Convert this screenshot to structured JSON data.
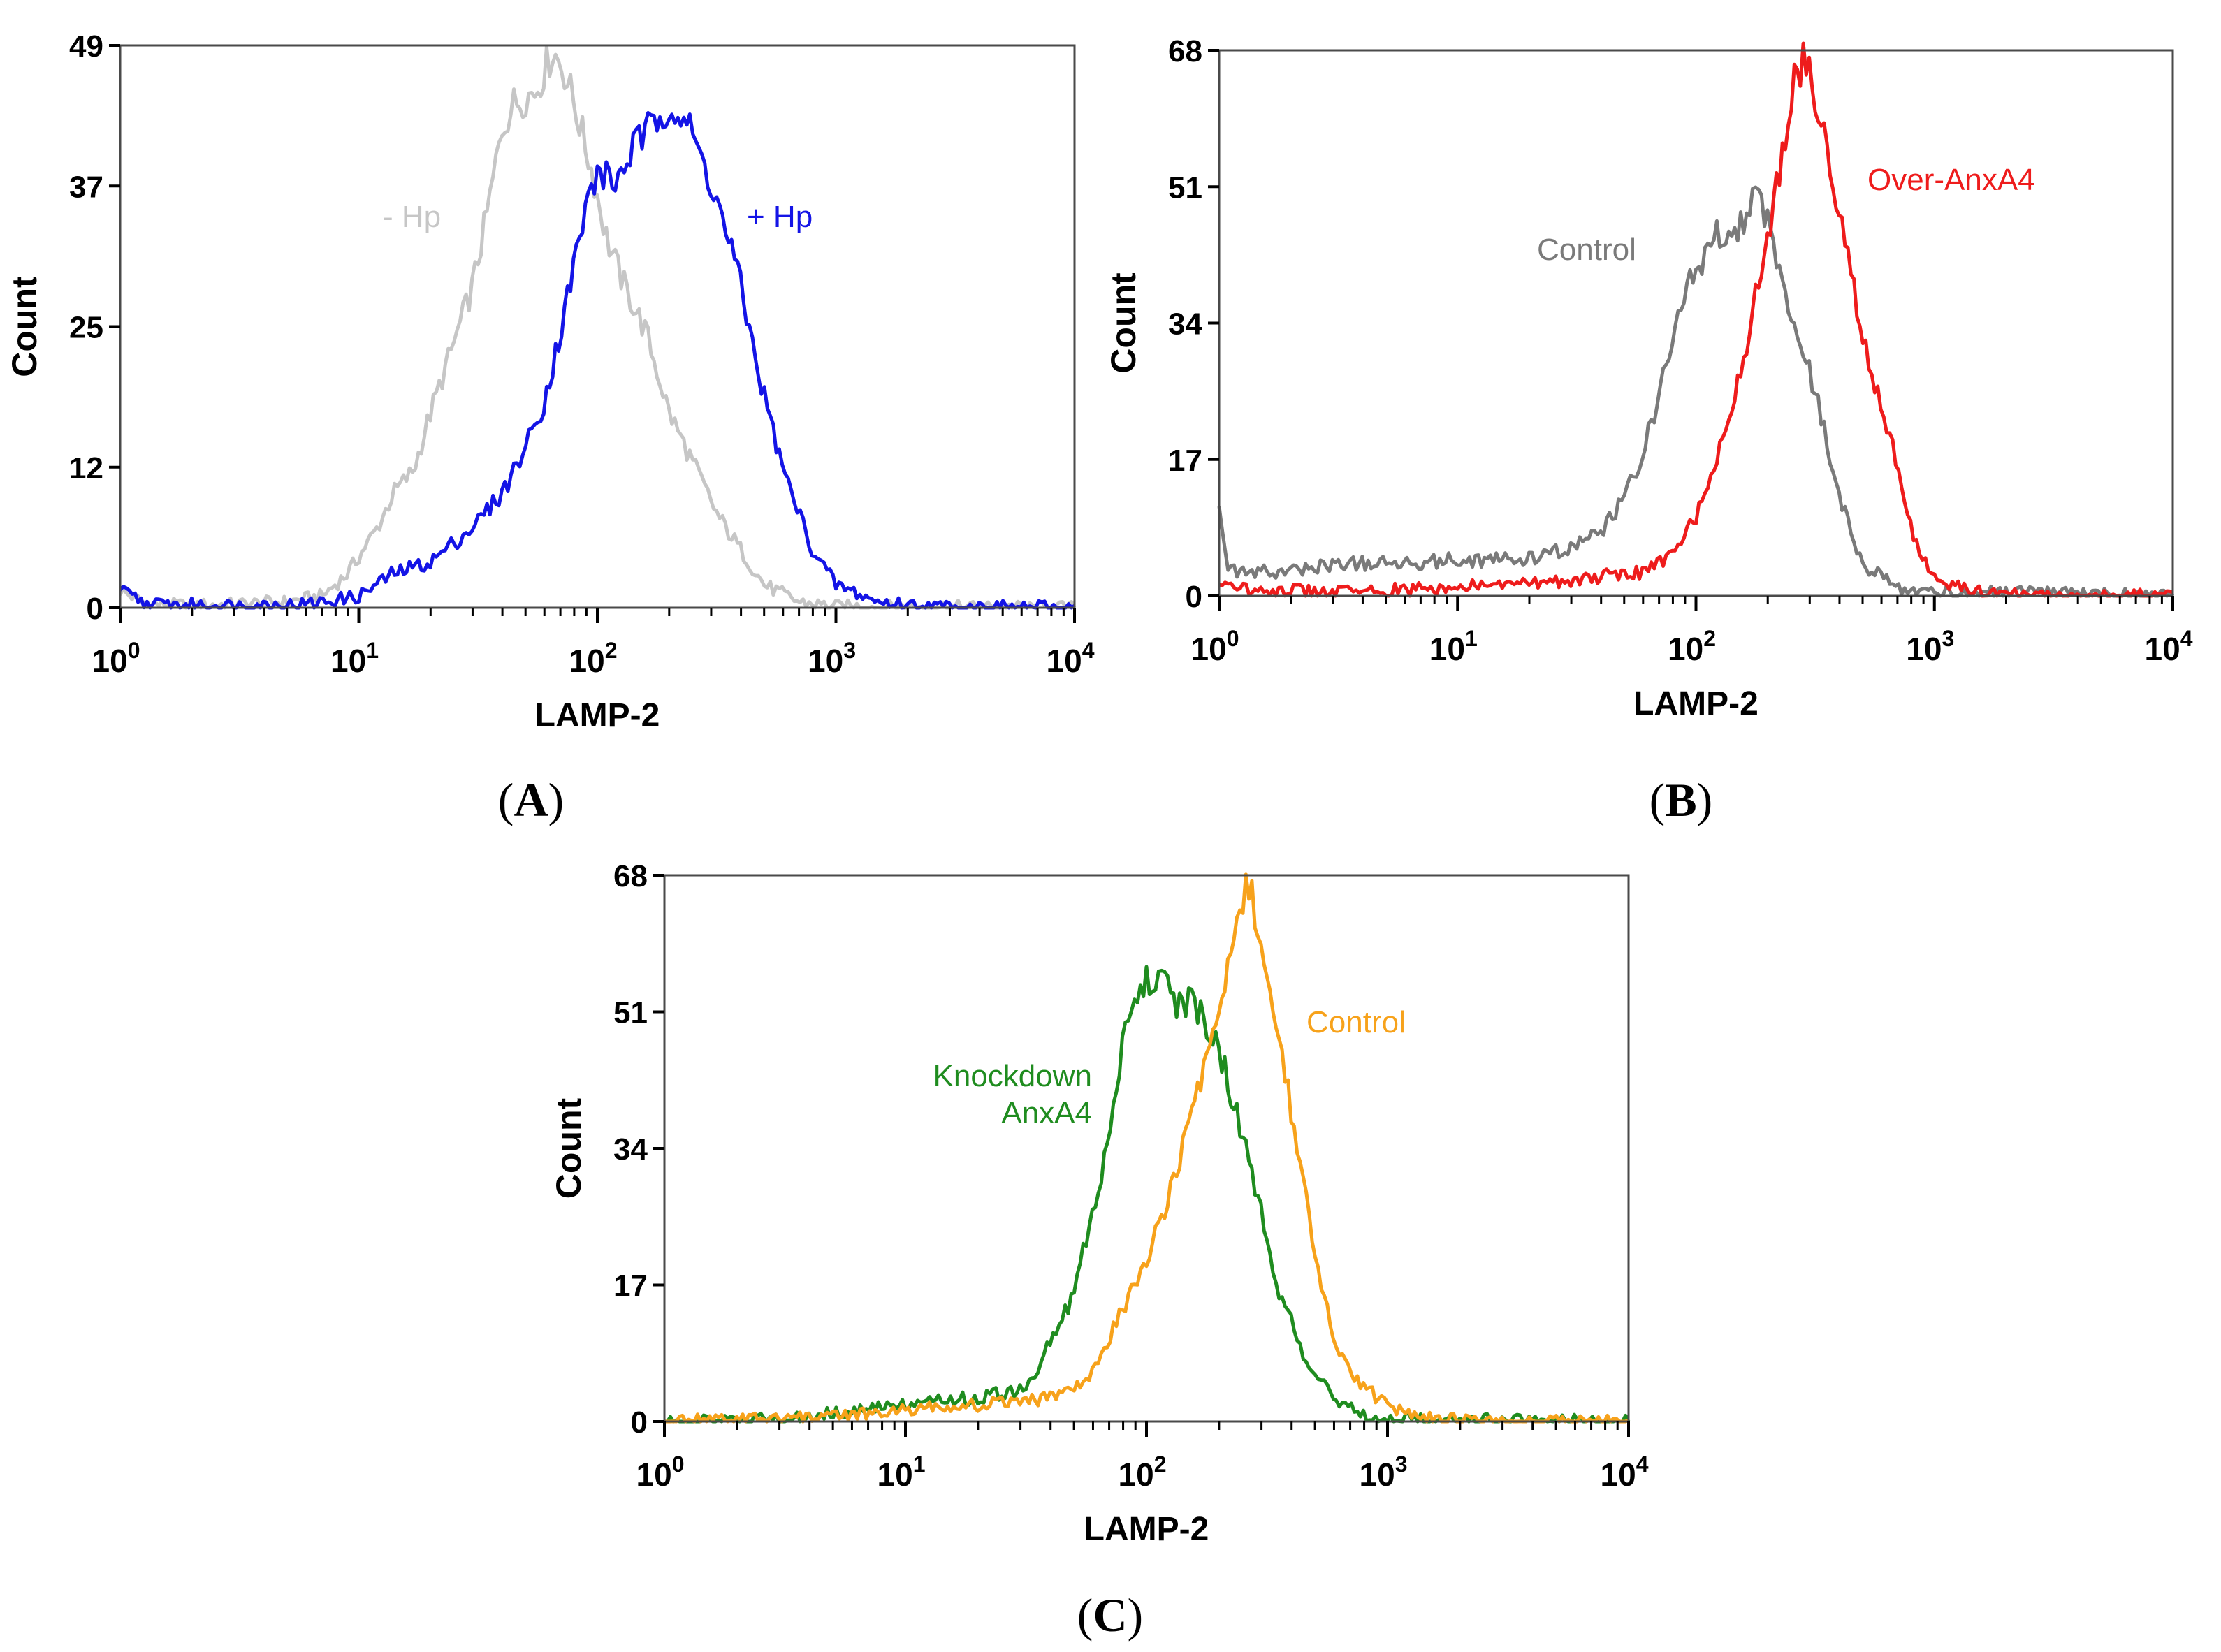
{
  "chart_data": [
    {
      "panel": "(A)",
      "panel_letter": "A",
      "type": "line",
      "title": "",
      "xlabel": "LAMP-2",
      "ylabel": "Count",
      "x_scale": "log",
      "xlim": [
        1,
        10000
      ],
      "ylim": [
        0,
        49
      ],
      "yticks": [
        "0",
        "12",
        "25",
        "37",
        "49"
      ],
      "xticks": [
        {
          "base": "10",
          "exp": "0"
        },
        {
          "base": "10",
          "exp": "1"
        },
        {
          "base": "10",
          "exp": "2"
        },
        {
          "base": "10",
          "exp": "3"
        },
        {
          "base": "10",
          "exp": "4"
        }
      ],
      "series": [
        {
          "name": "- Hp",
          "color": "#c6c6c6",
          "points": [
            [
              1,
              1.5
            ],
            [
              1.3,
              0.3
            ],
            [
              2,
              0.2
            ],
            [
              3,
              0.3
            ],
            [
              5,
              0.5
            ],
            [
              7,
              1
            ],
            [
              9,
              3
            ],
            [
              12,
              7
            ],
            [
              14,
              10
            ],
            [
              17,
              12
            ],
            [
              20,
              17
            ],
            [
              25,
              23
            ],
            [
              30,
              28
            ],
            [
              35,
              35
            ],
            [
              40,
              42
            ],
            [
              45,
              44
            ],
            [
              55,
              45
            ],
            [
              65,
              48.5
            ],
            [
              72,
              47
            ],
            [
              80,
              44
            ],
            [
              95,
              38
            ],
            [
              110,
              32
            ],
            [
              130,
              28
            ],
            [
              160,
              24
            ],
            [
              200,
              17
            ],
            [
              260,
              12
            ],
            [
              320,
              8
            ],
            [
              400,
              5
            ],
            [
              500,
              2
            ],
            [
              700,
              0.5
            ],
            [
              1000,
              0.1
            ],
            [
              10000,
              0
            ]
          ]
        },
        {
          "name": "+ Hp",
          "color": "#1414e6",
          "points": [
            [
              1,
              1.5
            ],
            [
              1.3,
              0.3
            ],
            [
              3,
              0.2
            ],
            [
              6,
              0.3
            ],
            [
              10,
              1
            ],
            [
              14,
              3
            ],
            [
              20,
              4
            ],
            [
              30,
              7
            ],
            [
              40,
              10
            ],
            [
              50,
              14
            ],
            [
              60,
              18
            ],
            [
              70,
              24
            ],
            [
              80,
              30
            ],
            [
              90,
              35
            ],
            [
              100,
              38
            ],
            [
              120,
              37
            ],
            [
              140,
              40
            ],
            [
              170,
              42
            ],
            [
              200,
              44
            ],
            [
              240,
              42
            ],
            [
              300,
              37
            ],
            [
              380,
              30
            ],
            [
              480,
              20
            ],
            [
              600,
              12
            ],
            [
              800,
              5
            ],
            [
              1000,
              2
            ],
            [
              1500,
              0.5
            ],
            [
              2500,
              0.1
            ],
            [
              10000,
              0
            ]
          ]
        }
      ]
    },
    {
      "panel": "(B)",
      "panel_letter": "B",
      "type": "line",
      "title": "",
      "xlabel": "LAMP-2",
      "ylabel": "Count",
      "x_scale": "log",
      "xlim": [
        1,
        10000
      ],
      "ylim": [
        0,
        68
      ],
      "yticks": [
        "0",
        "17",
        "34",
        "51",
        "68"
      ],
      "xticks": [
        {
          "base": "10",
          "exp": "0"
        },
        {
          "base": "10",
          "exp": "1"
        },
        {
          "base": "10",
          "exp": "2"
        },
        {
          "base": "10",
          "exp": "3"
        },
        {
          "base": "10",
          "exp": "4"
        }
      ],
      "series": [
        {
          "name": "Control",
          "color": "#7a7a7a",
          "points": [
            [
              1,
              12
            ],
            [
              1.1,
              3
            ],
            [
              2,
              3
            ],
            [
              3,
              4
            ],
            [
              5,
              4
            ],
            [
              10,
              4.5
            ],
            [
              20,
              4.5
            ],
            [
              30,
              6
            ],
            [
              40,
              8
            ],
            [
              50,
              12
            ],
            [
              60,
              18
            ],
            [
              70,
              25
            ],
            [
              80,
              32
            ],
            [
              90,
              38
            ],
            [
              100,
              40
            ],
            [
              120,
              45
            ],
            [
              150,
              46
            ],
            [
              180,
              50
            ],
            [
              200,
              47
            ],
            [
              250,
              35
            ],
            [
              300,
              28
            ],
            [
              350,
              20
            ],
            [
              400,
              12
            ],
            [
              500,
              4
            ],
            [
              700,
              1
            ],
            [
              1000,
              0.5
            ],
            [
              10000,
              0
            ]
          ]
        },
        {
          "name": "Over-AnxA4",
          "color": "#ee1c1c",
          "points": [
            [
              1,
              1
            ],
            [
              3,
              0.5
            ],
            [
              10,
              1
            ],
            [
              30,
              2
            ],
            [
              60,
              3
            ],
            [
              80,
              5
            ],
            [
              100,
              10
            ],
            [
              130,
              20
            ],
            [
              160,
              30
            ],
            [
              200,
              45
            ],
            [
              230,
              55
            ],
            [
              260,
              65
            ],
            [
              290,
              67
            ],
            [
              330,
              60
            ],
            [
              400,
              48
            ],
            [
              500,
              32
            ],
            [
              650,
              20
            ],
            [
              800,
              8
            ],
            [
              1000,
              2
            ],
            [
              1500,
              0.5
            ],
            [
              2500,
              0
            ],
            [
              10000,
              0
            ]
          ]
        }
      ]
    },
    {
      "panel": "(C)",
      "panel_letter": "C",
      "type": "line",
      "title": "",
      "xlabel": "LAMP-2",
      "ylabel": "Count",
      "x_scale": "log",
      "xlim": [
        1,
        10000
      ],
      "ylim": [
        0,
        68
      ],
      "yticks": [
        "0",
        "17",
        "34",
        "51",
        "68"
      ],
      "xticks": [
        {
          "base": "10",
          "exp": "0"
        },
        {
          "base": "10",
          "exp": "1"
        },
        {
          "base": "10",
          "exp": "2"
        },
        {
          "base": "10",
          "exp": "3"
        },
        {
          "base": "10",
          "exp": "4"
        }
      ],
      "series": [
        {
          "name": "Knockdown AnxA4",
          "label_lines": [
            "Knockdown",
            "AnxA4"
          ],
          "color": "#1f8c1f",
          "points": [
            [
              1,
              0
            ],
            [
              3,
              0.3
            ],
            [
              5,
              1
            ],
            [
              10,
              2
            ],
            [
              20,
              3
            ],
            [
              30,
              4
            ],
            [
              35,
              6
            ],
            [
              40,
              10
            ],
            [
              50,
              16
            ],
            [
              60,
              26
            ],
            [
              70,
              36
            ],
            [
              80,
              48
            ],
            [
              90,
              53
            ],
            [
              110,
              56
            ],
            [
              130,
              52
            ],
            [
              160,
              52
            ],
            [
              190,
              48
            ],
            [
              230,
              40
            ],
            [
              280,
              30
            ],
            [
              350,
              17
            ],
            [
              450,
              8
            ],
            [
              600,
              3
            ],
            [
              800,
              1
            ],
            [
              1000,
              0.3
            ],
            [
              10000,
              0
            ]
          ]
        },
        {
          "name": "Control",
          "label_lines": [
            "Control"
          ],
          "color": "#f7a21b",
          "points": [
            [
              1,
              0
            ],
            [
              5,
              0.5
            ],
            [
              10,
              1.5
            ],
            [
              20,
              2
            ],
            [
              40,
              3
            ],
            [
              60,
              6
            ],
            [
              80,
              14
            ],
            [
              100,
              20
            ],
            [
              130,
              30
            ],
            [
              160,
              40
            ],
            [
              200,
              50
            ],
            [
              240,
              62
            ],
            [
              260,
              68
            ],
            [
              300,
              60
            ],
            [
              350,
              48
            ],
            [
              420,
              35
            ],
            [
              500,
              20
            ],
            [
              600,
              10
            ],
            [
              800,
              4
            ],
            [
              1200,
              1
            ],
            [
              1600,
              0.2
            ],
            [
              10000,
              0
            ]
          ]
        }
      ]
    }
  ]
}
